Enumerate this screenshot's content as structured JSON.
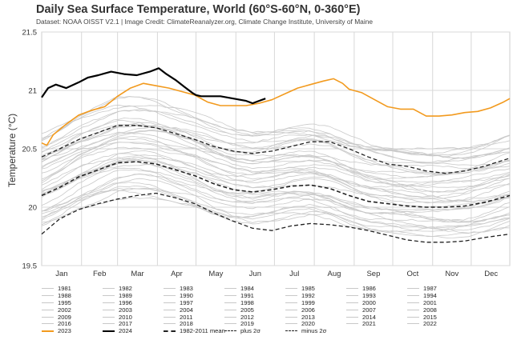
{
  "chart_data": {
    "type": "line",
    "title": "Daily Sea Surface Temperature, World (60°S-60°N, 0-360°E)",
    "subtitle": "Dataset: NOAA OISST V2.1 | Image Credit: ClimateReanalyzer.org, Climate Change Institute, University of Maine",
    "ylabel": "Temperature (°C)",
    "xlabel": "",
    "ylim": [
      19.5,
      21.5
    ],
    "yticks": [
      "19.5",
      "20",
      "20.5",
      "21",
      "21.5"
    ],
    "months": [
      "Jan",
      "Feb",
      "Mar",
      "Apr",
      "May",
      "Jun",
      "Jul",
      "Aug",
      "Sep",
      "Oct",
      "Nov",
      "Dec"
    ],
    "grid": true,
    "legend_position": "bottom",
    "series": [
      {
        "name": "2024",
        "color": "#000000",
        "style": "solid-thick",
        "x": [
          1,
          6,
          12,
          20,
          30,
          37,
          45,
          55,
          65,
          75,
          85,
          92,
          98,
          105,
          112,
          118,
          121,
          125,
          130,
          140,
          150,
          160,
          165,
          170,
          175
        ],
        "values": [
          20.94,
          21.02,
          21.05,
          21.02,
          21.07,
          21.11,
          21.13,
          21.16,
          21.14,
          21.13,
          21.16,
          21.19,
          21.14,
          21.09,
          21.03,
          20.98,
          20.96,
          20.95,
          20.95,
          20.95,
          20.93,
          20.91,
          20.89,
          20.91,
          20.93
        ]
      },
      {
        "name": "2023",
        "color": "#f29a1e",
        "style": "solid",
        "x": [
          1,
          5,
          10,
          20,
          30,
          40,
          50,
          60,
          70,
          80,
          90,
          100,
          110,
          120,
          130,
          140,
          150,
          160,
          170,
          180,
          190,
          200,
          210,
          220,
          228,
          235,
          240,
          250,
          260,
          270,
          280,
          290,
          300,
          310,
          320,
          330,
          340,
          350,
          360,
          365
        ],
        "values": [
          20.55,
          20.53,
          20.62,
          20.71,
          20.79,
          20.83,
          20.86,
          20.95,
          21.02,
          21.06,
          21.04,
          21.02,
          20.99,
          20.96,
          20.9,
          20.87,
          20.87,
          20.87,
          20.89,
          20.92,
          20.97,
          21.02,
          21.05,
          21.08,
          21.1,
          21.06,
          21.01,
          20.98,
          20.92,
          20.86,
          20.84,
          20.84,
          20.78,
          20.78,
          20.79,
          20.81,
          20.82,
          20.85,
          20.9,
          20.93
        ]
      },
      {
        "name": "1982-2011 mean",
        "color": "#222222",
        "style": "dashed-thick",
        "x": [
          1,
          15,
          30,
          45,
          60,
          75,
          90,
          105,
          120,
          135,
          150,
          165,
          180,
          195,
          210,
          225,
          240,
          255,
          270,
          285,
          300,
          315,
          330,
          345,
          365
        ],
        "values": [
          20.1,
          20.17,
          20.26,
          20.32,
          20.38,
          20.39,
          20.37,
          20.32,
          20.27,
          20.2,
          20.15,
          20.13,
          20.15,
          20.18,
          20.19,
          20.16,
          20.1,
          20.05,
          20.03,
          20.01,
          20.0,
          20.0,
          20.01,
          20.04,
          20.1
        ]
      },
      {
        "name": "plus 2σ",
        "color": "#222222",
        "style": "dashed",
        "x": [
          1,
          15,
          30,
          45,
          60,
          75,
          90,
          105,
          120,
          135,
          150,
          165,
          180,
          195,
          210,
          225,
          240,
          255,
          270,
          285,
          300,
          315,
          330,
          345,
          365
        ],
        "values": [
          20.43,
          20.5,
          20.58,
          20.64,
          20.7,
          20.7,
          20.68,
          20.63,
          20.58,
          20.52,
          20.48,
          20.46,
          20.48,
          20.52,
          20.56,
          20.56,
          20.5,
          20.43,
          20.37,
          20.35,
          20.31,
          20.29,
          20.31,
          20.35,
          20.42
        ]
      },
      {
        "name": "minus 2σ",
        "color": "#222222",
        "style": "dashed",
        "x": [
          1,
          15,
          30,
          45,
          60,
          75,
          90,
          105,
          120,
          135,
          150,
          165,
          180,
          195,
          210,
          225,
          240,
          255,
          270,
          285,
          300,
          315,
          330,
          345,
          365
        ],
        "values": [
          19.77,
          19.9,
          19.98,
          20.03,
          20.07,
          20.1,
          20.12,
          20.08,
          20.03,
          19.95,
          19.88,
          19.82,
          19.8,
          19.84,
          19.86,
          19.85,
          19.83,
          19.8,
          19.76,
          19.72,
          19.7,
          19.7,
          19.71,
          19.74,
          19.77
        ]
      }
    ]
  },
  "legend": {
    "rows": [
      [
        "1981",
        "1982",
        "1983",
        "1984",
        "1985",
        "1986",
        "1987"
      ],
      [
        "1988",
        "1989",
        "1990",
        "1991",
        "1992",
        "1993",
        "1994"
      ],
      [
        "1995",
        "1996",
        "1997",
        "1998",
        "1999",
        "2000",
        "2001"
      ],
      [
        "2002",
        "2003",
        "2004",
        "2005",
        "2006",
        "2007",
        "2008"
      ],
      [
        "2009",
        "2010",
        "2011",
        "2012",
        "2013",
        "2014",
        "2015"
      ],
      [
        "2016",
        "2017",
        "2018",
        "2019",
        "2020",
        "2021",
        "2022"
      ]
    ],
    "last_row": [
      {
        "label": "2023",
        "kind": "2023"
      },
      {
        "label": "2024",
        "kind": "2024"
      },
      {
        "label": "1982-2011 mean",
        "kind": "mean"
      },
      {
        "label": "plus 2σ",
        "kind": "plus"
      },
      {
        "label": "minus 2σ",
        "kind": "minus"
      }
    ]
  }
}
